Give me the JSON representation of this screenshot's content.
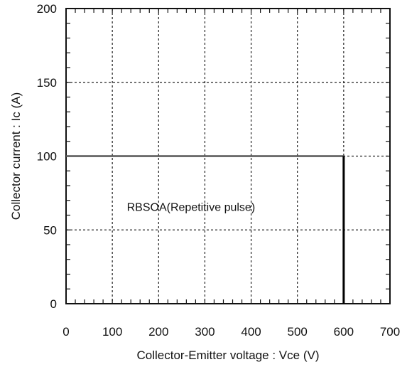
{
  "chart_data": {
    "type": "line",
    "title": "",
    "xlabel": "Collector-Emitter voltage : Vce (V)",
    "ylabel": "Collector current : Ic (A)",
    "xlim": [
      0,
      700
    ],
    "ylim": [
      0,
      200
    ],
    "xticks": [
      0,
      100,
      200,
      300,
      400,
      500,
      600,
      700
    ],
    "yticks": [
      0,
      50,
      100,
      150,
      200
    ],
    "grid": true,
    "grid_style": "dotted",
    "series": [
      {
        "x": [
          0,
          600,
          600
        ],
        "y": [
          100,
          100,
          0
        ]
      }
    ],
    "annotations": [
      {
        "text": "RBSOA(Repetitive pulse)",
        "x": 270,
        "y": 63
      }
    ]
  }
}
